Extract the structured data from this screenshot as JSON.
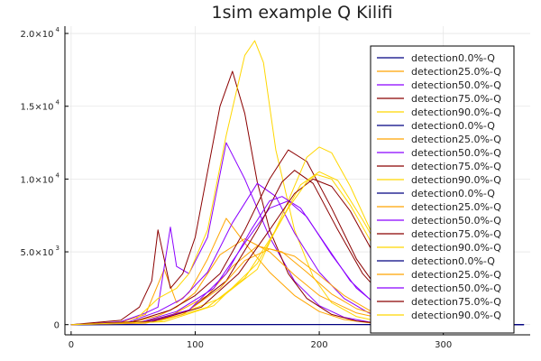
{
  "chart_data": {
    "type": "line",
    "title": "1sim example Q Kilifi",
    "xlabel": "",
    "ylabel": "",
    "xlim": [
      -5,
      370
    ],
    "ylim": [
      -700,
      20500
    ],
    "x_ticks": [
      0,
      100,
      200,
      300
    ],
    "x_tick_labels": [
      "0",
      "100",
      "200",
      "300"
    ],
    "y_ticks": [
      0,
      5000,
      10000,
      15000,
      20000
    ],
    "y_tick_labels": [
      {
        "mantissa": "0",
        "exponent": ""
      },
      {
        "mantissa": "5.0×10",
        "exponent": "3"
      },
      {
        "mantissa": "1.0×10",
        "exponent": "4"
      },
      {
        "mantissa": "1.5×10",
        "exponent": "4"
      },
      {
        "mantissa": "2.0×10",
        "exponent": "4"
      }
    ],
    "grid": true,
    "legend_position": "right",
    "series": [
      {
        "name": "detection0.0%-Q",
        "color": "#000080",
        "x": [
          0,
          100,
          200,
          300,
          365
        ],
        "y": [
          0,
          5,
          8,
          3,
          0
        ]
      },
      {
        "name": "detection25.0%-Q",
        "color": "#ffa500",
        "x": [
          0,
          40,
          60,
          75,
          85,
          95,
          110,
          125,
          140,
          160,
          180,
          200,
          220,
          240,
          260,
          280,
          300
        ],
        "y": [
          0,
          150,
          700,
          3800,
          1500,
          2200,
          4500,
          7300,
          5600,
          3600,
          2000,
          900,
          350,
          130,
          40,
          10,
          0
        ]
      },
      {
        "name": "detection50.0%-Q",
        "color": "#8b00ff",
        "x": [
          0,
          40,
          60,
          70,
          80,
          85,
          95,
          110,
          125,
          140,
          160,
          180,
          200,
          220,
          240,
          260,
          280,
          300
        ],
        "y": [
          0,
          200,
          800,
          1200,
          6700,
          4000,
          3500,
          6000,
          12500,
          10000,
          6000,
          3000,
          1300,
          500,
          180,
          60,
          20,
          0
        ]
      },
      {
        "name": "detection75.0%-Q",
        "color": "#8b0000",
        "x": [
          0,
          40,
          55,
          65,
          70,
          80,
          90,
          100,
          110,
          120,
          130,
          140,
          150,
          160,
          175,
          190,
          210,
          230,
          250,
          270,
          300
        ],
        "y": [
          0,
          300,
          1200,
          3000,
          6500,
          2500,
          3500,
          6000,
          10500,
          15000,
          17400,
          14500,
          9800,
          6500,
          3500,
          1800,
          700,
          250,
          80,
          20,
          0
        ]
      },
      {
        "name": "detection90.0%-Q",
        "color": "#ffd700",
        "x": [
          0,
          50,
          70,
          85,
          95,
          110,
          125,
          140,
          148,
          155,
          165,
          180,
          195,
          210,
          230,
          250,
          270,
          300
        ],
        "y": [
          0,
          200,
          1800,
          2500,
          3500,
          6500,
          13000,
          18500,
          19500,
          18000,
          12000,
          6500,
          3300,
          1500,
          550,
          180,
          50,
          0
        ]
      },
      {
        "name": "detection0.0%-Q",
        "color": "#000080",
        "x": [
          0,
          100,
          200,
          300,
          365
        ],
        "y": [
          0,
          10,
          12,
          6,
          0
        ]
      },
      {
        "name": "detection25.0%-Q",
        "color": "#ffa500",
        "x": [
          0,
          45,
          70,
          85,
          100,
          120,
          140,
          160,
          180,
          200,
          230,
          260,
          290,
          320
        ],
        "y": [
          0,
          100,
          600,
          1200,
          2200,
          4800,
          5900,
          5000,
          3400,
          2000,
          800,
          250,
          60,
          0
        ]
      },
      {
        "name": "detection50.0%-Q",
        "color": "#8b00ff",
        "x": [
          0,
          45,
          70,
          90,
          110,
          130,
          150,
          165,
          180,
          200,
          220,
          240,
          260,
          280,
          300,
          320
        ],
        "y": [
          0,
          150,
          900,
          1800,
          3600,
          7000,
          9700,
          8800,
          6300,
          3600,
          1800,
          800,
          300,
          100,
          30,
          0
        ]
      },
      {
        "name": "detection75.0%-Q",
        "color": "#8b0000",
        "x": [
          0,
          50,
          80,
          100,
          120,
          140,
          160,
          175,
          190,
          210,
          230,
          250,
          270,
          290,
          310,
          330
        ],
        "y": [
          0,
          200,
          1000,
          2000,
          3500,
          6500,
          10000,
          12000,
          11200,
          8000,
          4500,
          2100,
          900,
          300,
          80,
          0
        ]
      },
      {
        "name": "detection90.0%-Q",
        "color": "#ffd700",
        "x": [
          0,
          60,
          90,
          120,
          150,
          170,
          190,
          200,
          210,
          225,
          245,
          265,
          285,
          305,
          330
        ],
        "y": [
          0,
          200,
          800,
          1800,
          3800,
          7500,
          11500,
          12200,
          11800,
          9500,
          5800,
          3000,
          1300,
          450,
          0
        ]
      },
      {
        "name": "detection0.0%-Q",
        "color": "#000080",
        "x": [
          0,
          100,
          200,
          300,
          365
        ],
        "y": [
          0,
          6,
          10,
          4,
          0
        ]
      },
      {
        "name": "detection25.0%-Q",
        "color": "#ffa500",
        "x": [
          0,
          50,
          80,
          110,
          130,
          150,
          170,
          190,
          210,
          230,
          260,
          290,
          320
        ],
        "y": [
          0,
          100,
          600,
          2000,
          4000,
          5400,
          5000,
          3600,
          2100,
          1100,
          350,
          80,
          0
        ]
      },
      {
        "name": "detection50.0%-Q",
        "color": "#8b00ff",
        "x": [
          0,
          55,
          85,
          115,
          140,
          160,
          175,
          190,
          210,
          230,
          250,
          270,
          290,
          320
        ],
        "y": [
          0,
          150,
          900,
          2500,
          5600,
          8000,
          8500,
          7400,
          4800,
          2500,
          1100,
          400,
          120,
          0
        ]
      },
      {
        "name": "detection75.0%-Q",
        "color": "#8b0000",
        "x": [
          0,
          60,
          95,
          125,
          150,
          170,
          180,
          195,
          215,
          235,
          255,
          275,
          300,
          330
        ],
        "y": [
          0,
          200,
          1000,
          3000,
          6500,
          9800,
          10600,
          9700,
          6500,
          3500,
          1600,
          600,
          150,
          0
        ]
      },
      {
        "name": "detection90.0%-Q",
        "color": "#ffd700",
        "x": [
          0,
          70,
          110,
          140,
          165,
          185,
          200,
          215,
          235,
          255,
          275,
          300,
          330
        ],
        "y": [
          0,
          200,
          1200,
          3200,
          6500,
          9600,
          10500,
          9900,
          7200,
          4200,
          2100,
          700,
          0
        ]
      },
      {
        "name": "detection0.0%-Q",
        "color": "#000080",
        "x": [
          0,
          100,
          200,
          300,
          365
        ],
        "y": [
          0,
          8,
          9,
          5,
          0
        ]
      },
      {
        "name": "detection25.0%-Q",
        "color": "#ffa500",
        "x": [
          0,
          60,
          90,
          120,
          140,
          160,
          180,
          200,
          220,
          240,
          270,
          300,
          330
        ],
        "y": [
          0,
          100,
          700,
          2500,
          4400,
          5200,
          4700,
          3400,
          2000,
          1000,
          300,
          60,
          0
        ]
      },
      {
        "name": "detection50.0%-Q",
        "color": "#8b00ff",
        "x": [
          0,
          60,
          95,
          125,
          145,
          160,
          170,
          185,
          205,
          225,
          245,
          265,
          290,
          320
        ],
        "y": [
          0,
          150,
          1000,
          3500,
          6500,
          8500,
          8800,
          8000,
          5500,
          3000,
          1400,
          500,
          120,
          0
        ]
      },
      {
        "name": "detection75.0%-Q",
        "color": "#8b0000",
        "x": [
          0,
          65,
          105,
          135,
          160,
          180,
          195,
          210,
          225,
          245,
          265,
          290,
          320,
          345
        ],
        "y": [
          0,
          200,
          1200,
          3500,
          6500,
          9000,
          10000,
          9500,
          7800,
          4700,
          2300,
          800,
          150,
          0
        ]
      },
      {
        "name": "detection90.0%-Q",
        "color": "#ffd700",
        "x": [
          0,
          75,
          115,
          150,
          175,
          190,
          198,
          210,
          225,
          245,
          265,
          290,
          320,
          350
        ],
        "y": [
          0,
          200,
          1300,
          4200,
          8000,
          9800,
          10300,
          10000,
          8200,
          5200,
          2700,
          1000,
          200,
          0
        ]
      }
    ]
  }
}
